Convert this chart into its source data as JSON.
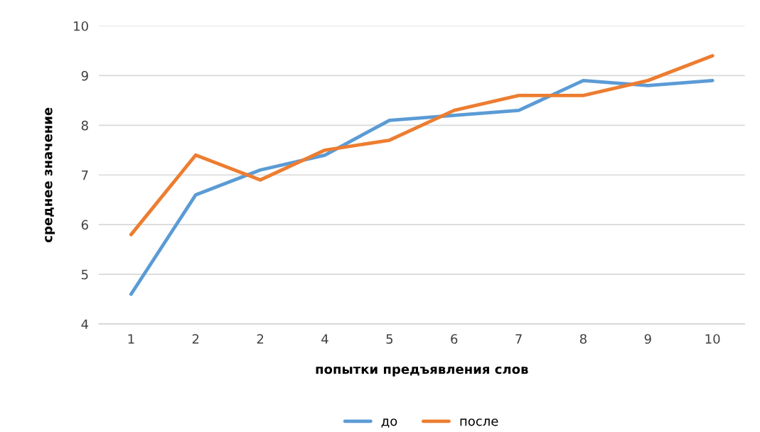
{
  "chart_data": {
    "type": "line",
    "xlabel": "попытки предъявления слов",
    "ylabel": "среднее значение",
    "categories": [
      "1",
      "2",
      "2",
      "4",
      "5",
      "6",
      "7",
      "8",
      "9",
      "10"
    ],
    "series": [
      {
        "name": "до",
        "color": "#5b9bd5",
        "values": [
          4.6,
          6.6,
          7.1,
          7.4,
          8.1,
          8.2,
          8.3,
          8.9,
          8.8,
          8.9
        ]
      },
      {
        "name": "после",
        "color": "#ed7d31",
        "values": [
          5.8,
          7.4,
          6.9,
          7.5,
          7.7,
          8.3,
          8.6,
          8.6,
          8.9,
          9.4
        ]
      }
    ],
    "ylim": [
      4,
      10
    ],
    "yticks": [
      4,
      5,
      6,
      7,
      8,
      9,
      10
    ],
    "grid": "y",
    "legend": "bottom",
    "marker": "none",
    "line_style": "solid"
  }
}
